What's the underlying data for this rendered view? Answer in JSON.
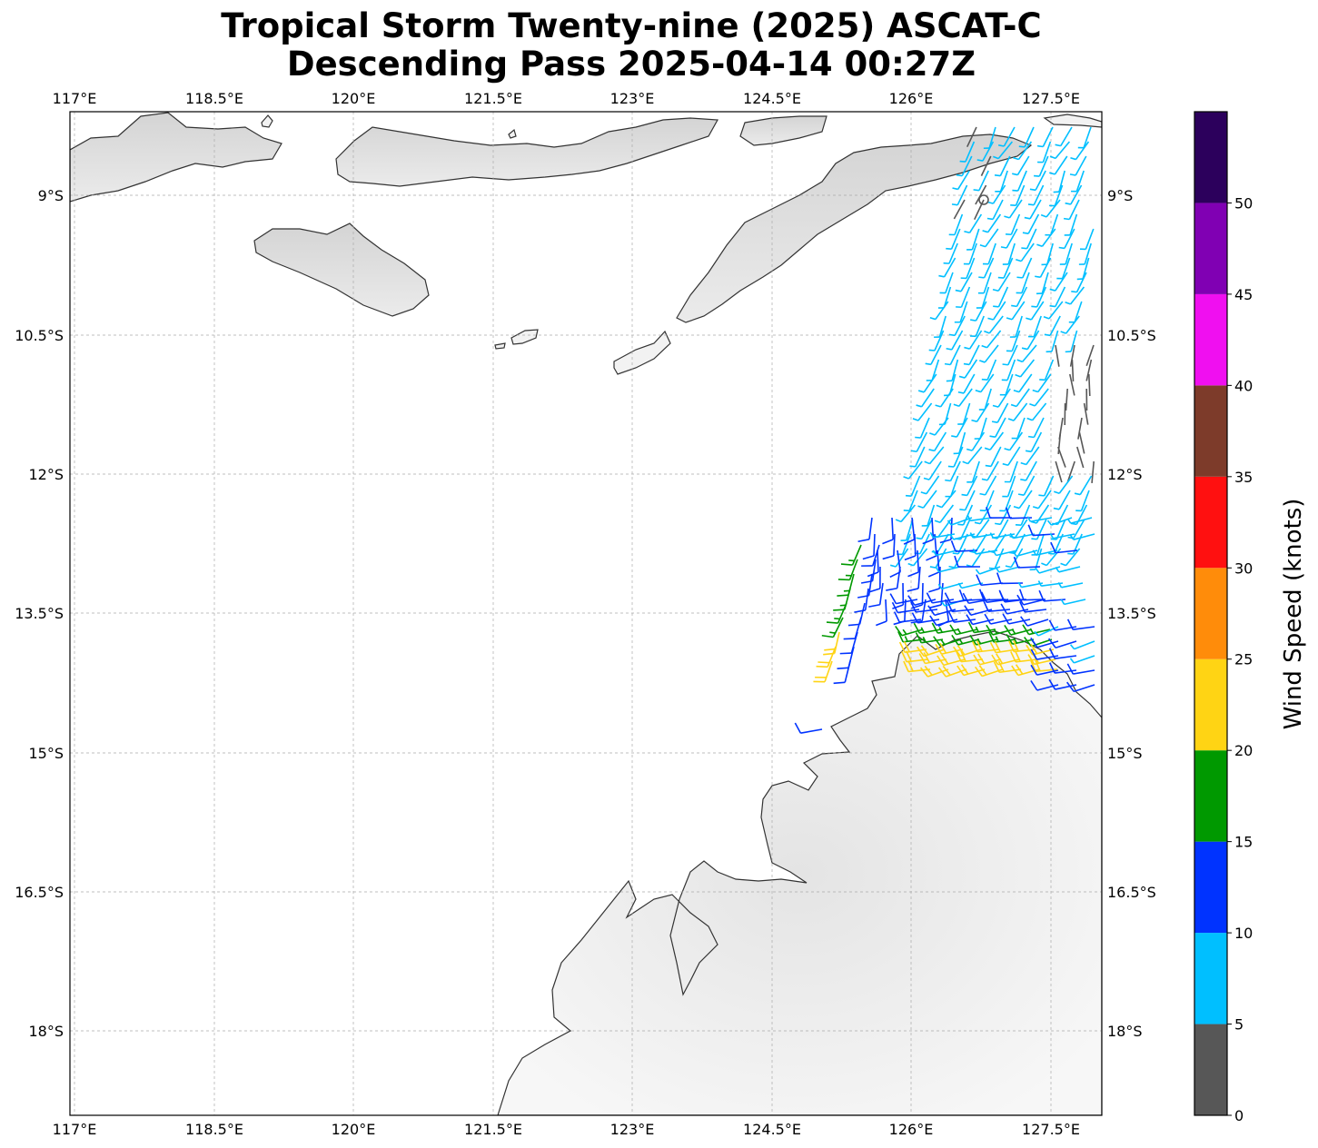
{
  "title": {
    "line1": "Tropical Storm Twenty-nine (2025) ASCAT-C",
    "line2": "Descending Pass 2025-04-14 00:27Z"
  },
  "map": {
    "lon_ticks": [
      "117°E",
      "118.5°E",
      "120°E",
      "121.5°E",
      "123°E",
      "124.5°E",
      "126°E",
      "127.5°E"
    ],
    "lat_ticks": [
      "9°S",
      "10.5°S",
      "12°S",
      "13.5°S",
      "15°S",
      "16.5°S",
      "18°S"
    ],
    "grid": true,
    "land_shading": "grayscale terrain"
  },
  "colorbar": {
    "label": "Wind Speed (knots)",
    "tick_labels": [
      "0",
      "5",
      "10",
      "15",
      "20",
      "25",
      "30",
      "35",
      "40",
      "45",
      "50"
    ],
    "bins": [
      {
        "min": 0,
        "max": 5,
        "color": "#575757"
      },
      {
        "min": 5,
        "max": 10,
        "color": "#00bfff"
      },
      {
        "min": 10,
        "max": 15,
        "color": "#0033ff"
      },
      {
        "min": 15,
        "max": 20,
        "color": "#009900"
      },
      {
        "min": 20,
        "max": 25,
        "color": "#ffd414"
      },
      {
        "min": 25,
        "max": 30,
        "color": "#ff8c0a"
      },
      {
        "min": 30,
        "max": 35,
        "color": "#ff1010"
      },
      {
        "min": 35,
        "max": 40,
        "color": "#7d3b2a"
      },
      {
        "min": 40,
        "max": 45,
        "color": "#f00ff0"
      },
      {
        "min": 45,
        "max": 50,
        "color": "#8000b3"
      },
      {
        "min": 50,
        "max": 55,
        "color": "#2c005c"
      }
    ]
  }
}
